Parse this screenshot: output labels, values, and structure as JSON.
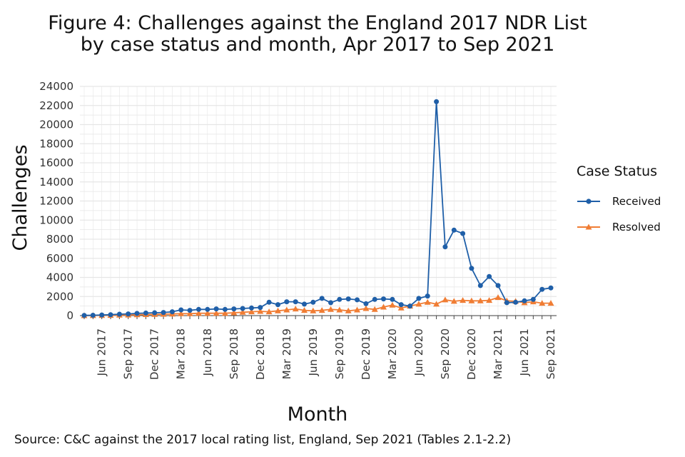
{
  "title_line1": "Figure 4: Challenges against the England 2017 NDR List",
  "title_line2": "by case status and month, Apr 2017 to Sep 2021",
  "source": "Source: C&C against the 2017 local rating list, England, Sep 2021 (Tables 2.1-2.2)",
  "legend_title": "Case Status",
  "colors": {
    "received": "#1f5fa8",
    "resolved": "#f07d34",
    "grid": "#e6e6e6",
    "axis": "#444444"
  },
  "chart_data": {
    "type": "line",
    "title": "Figure 4: Challenges against the England 2017 NDR List by case status and month, Apr 2017 to Sep 2021",
    "xlabel": "Month",
    "ylabel": "Challenges",
    "ylim": [
      0,
      24000
    ],
    "y_ticks": [
      0,
      2000,
      4000,
      6000,
      8000,
      10000,
      12000,
      14000,
      16000,
      18000,
      20000,
      22000,
      24000
    ],
    "x_tick_labels": [
      "Jun 2017",
      "Sep 2017",
      "Dec 2017",
      "Mar 2018",
      "Jun 2018",
      "Sep 2018",
      "Dec 2018",
      "Mar 2019",
      "Jun 2019",
      "Sep 2019",
      "Dec 2019",
      "Mar 2020",
      "Jun 2020",
      "Sep 2020",
      "Dec 2020",
      "Mar 2021",
      "Jun 2021",
      "Sep 2021"
    ],
    "grid": true,
    "legend_position": "right",
    "x": [
      "Apr 2017",
      "May 2017",
      "Jun 2017",
      "Jul 2017",
      "Aug 2017",
      "Sep 2017",
      "Oct 2017",
      "Nov 2017",
      "Dec 2017",
      "Jan 2018",
      "Feb 2018",
      "Mar 2018",
      "Apr 2018",
      "May 2018",
      "Jun 2018",
      "Jul 2018",
      "Aug 2018",
      "Sep 2018",
      "Oct 2018",
      "Nov 2018",
      "Dec 2018",
      "Jan 2019",
      "Feb 2019",
      "Mar 2019",
      "Apr 2019",
      "May 2019",
      "Jun 2019",
      "Jul 2019",
      "Aug 2019",
      "Sep 2019",
      "Oct 2019",
      "Nov 2019",
      "Dec 2019",
      "Jan 2020",
      "Feb 2020",
      "Mar 2020",
      "Apr 2020",
      "May 2020",
      "Jun 2020",
      "Jul 2020",
      "Aug 2020",
      "Sep 2020",
      "Oct 2020",
      "Nov 2020",
      "Dec 2020",
      "Jan 2021",
      "Feb 2021",
      "Mar 2021",
      "Apr 2021",
      "May 2021",
      "Jun 2021",
      "Jul 2021",
      "Aug 2021",
      "Sep 2021"
    ],
    "series": [
      {
        "name": "Received",
        "marker": "circle",
        "values": [
          20,
          40,
          70,
          100,
          150,
          180,
          230,
          270,
          300,
          330,
          400,
          600,
          550,
          650,
          650,
          700,
          650,
          700,
          750,
          800,
          850,
          1400,
          1150,
          1450,
          1450,
          1200,
          1400,
          1800,
          1350,
          1700,
          1750,
          1650,
          1250,
          1700,
          1750,
          1700,
          1150,
          1000,
          1800,
          2050,
          22400,
          7200,
          8950,
          8600,
          4950,
          3150,
          4100,
          3150,
          1350,
          1400,
          1550,
          1700,
          2750,
          2900
        ]
      },
      {
        "name": "Resolved",
        "marker": "triangle",
        "values": [
          0,
          10,
          20,
          30,
          50,
          70,
          90,
          110,
          130,
          150,
          170,
          200,
          200,
          250,
          250,
          250,
          250,
          300,
          350,
          400,
          450,
          400,
          500,
          600,
          700,
          550,
          500,
          550,
          650,
          600,
          500,
          600,
          750,
          650,
          900,
          1100,
          800,
          1000,
          1200,
          1400,
          1200,
          1650,
          1500,
          1600,
          1550,
          1550,
          1600,
          1900,
          1550,
          1500,
          1350,
          1450,
          1300,
          1300
        ]
      }
    ]
  }
}
